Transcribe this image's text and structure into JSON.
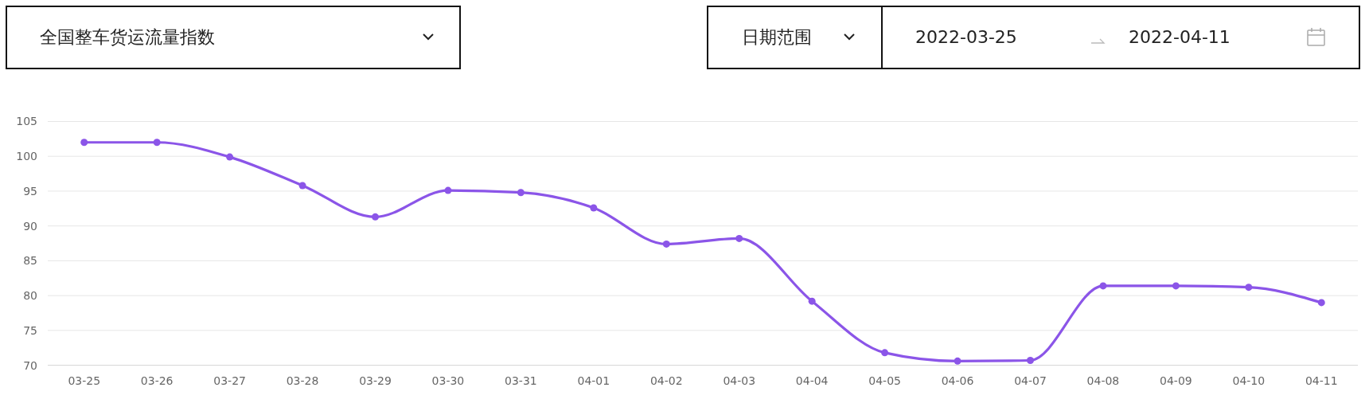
{
  "chart_data": {
    "type": "line",
    "title": "全国整车货运流量指数",
    "annotations": [
      "日期范围",
      "2022-03-25",
      "2022-04-11"
    ],
    "categories": [
      "03-25",
      "03-26",
      "03-27",
      "03-28",
      "03-29",
      "03-30",
      "03-31",
      "04-01",
      "04-02",
      "04-03",
      "04-04",
      "04-05",
      "04-06",
      "04-07",
      "04-08",
      "04-09",
      "04-10",
      "04-11"
    ],
    "series": [
      {
        "color": "#8b55e8",
        "values": [
          102.0,
          102.0,
          99.9,
          95.8,
          91.3,
          95.1,
          94.8,
          92.6,
          87.4,
          88.2,
          79.2,
          71.8,
          70.6,
          70.7,
          81.4,
          81.4,
          81.2,
          79.0
        ]
      }
    ],
    "ylim": [
      70,
      105
    ],
    "yticks": [
      70,
      75,
      80,
      85,
      90,
      95,
      100,
      105
    ],
    "grid": "y",
    "marker": "circle"
  }
}
